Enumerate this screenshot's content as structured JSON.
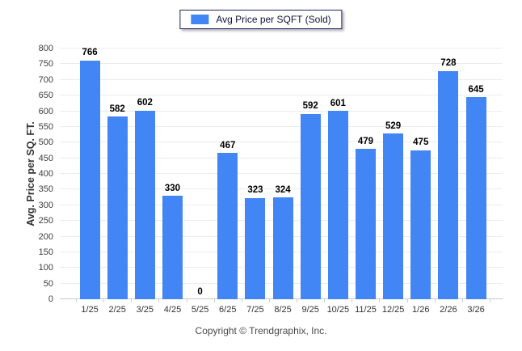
{
  "legend": {
    "label": "Avg Price per SQFT (Sold)",
    "swatch_color": "#4285f4"
  },
  "y_axis": {
    "title": "Avg. Price per SQ. FT.",
    "ticks": [
      0,
      50,
      100,
      150,
      200,
      250,
      300,
      350,
      400,
      450,
      500,
      550,
      600,
      650,
      700,
      750,
      800
    ]
  },
  "footer": {
    "copyright": "Copyright © Trendgraphix, Inc."
  },
  "chart_data": {
    "type": "bar",
    "title": "",
    "series_name": "Avg Price per SQFT (Sold)",
    "categories": [
      "1/25",
      "2/25",
      "3/25",
      "4/25",
      "5/25",
      "6/25",
      "7/25",
      "8/25",
      "9/25",
      "10/25",
      "11/25",
      "12/25",
      "1/26",
      "2/26",
      "3/26"
    ],
    "values": [
      766,
      582,
      602,
      330,
      0,
      467,
      323,
      324,
      592,
      601,
      479,
      529,
      475,
      728,
      645
    ],
    "xlabel": "",
    "ylabel": "Avg. Price per SQ. FT.",
    "ylim": [
      0,
      800
    ],
    "grid": true,
    "legend_position": "top",
    "bar_color": "#4285f4",
    "value_labels": true
  }
}
